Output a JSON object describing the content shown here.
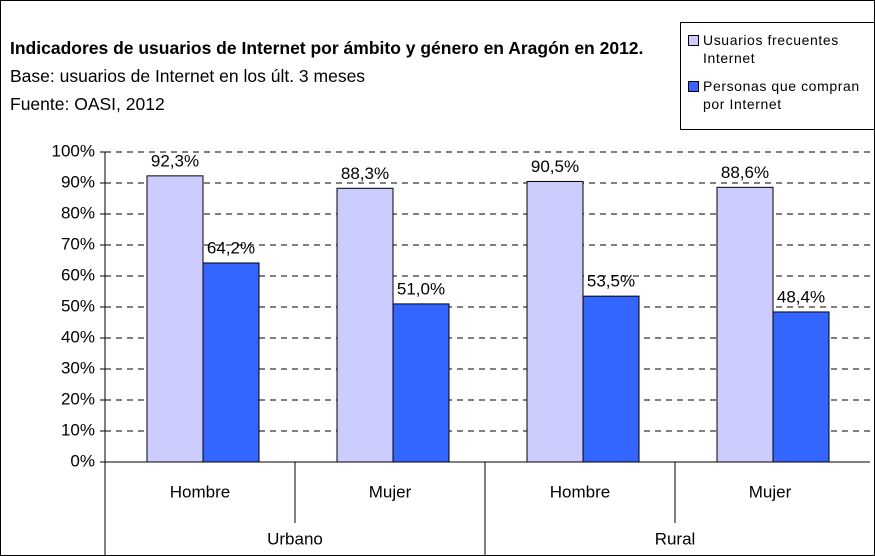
{
  "chart_data": {
    "type": "bar",
    "title": "Indicadores de usuarios de Internet por ámbito y género en Aragón en 2012.",
    "subtitle": "Base: usuarios de Internet en los últ. 3 meses",
    "source": "Fuente: OASI, 2012",
    "categories": [
      "Hombre",
      "Mujer",
      "Hombre",
      "Mujer"
    ],
    "category_groups": [
      "Urbano",
      "Urbano",
      "Rural",
      "Rural"
    ],
    "series": [
      {
        "name": "Usuarios frecuentes Internet",
        "color": "#ccccff",
        "values": [
          92.3,
          88.3,
          90.5,
          88.6
        ],
        "value_labels": [
          "92,3%",
          "88,3%",
          "90,5%",
          "88,6%"
        ]
      },
      {
        "name": "Personas que compran por Internet",
        "color": "#3366ff",
        "values": [
          64.2,
          51.0,
          53.5,
          48.4
        ],
        "value_labels": [
          "64,2%",
          "51,0%",
          "53,5%",
          "48,4%"
        ]
      }
    ],
    "ylim": [
      0,
      100
    ],
    "yticks": [
      {
        "value": 0,
        "label": "0%"
      },
      {
        "value": 10,
        "label": "10%"
      },
      {
        "value": 20,
        "label": "20%"
      },
      {
        "value": 30,
        "label": "30%"
      },
      {
        "value": 40,
        "label": "40%"
      },
      {
        "value": 50,
        "label": "50%"
      },
      {
        "value": 60,
        "label": "60%"
      },
      {
        "value": 70,
        "label": "70%"
      },
      {
        "value": 80,
        "label": "80%"
      },
      {
        "value": 90,
        "label": "90%"
      },
      {
        "value": 100,
        "label": "100%"
      }
    ],
    "grid": true,
    "legend": "top-right"
  }
}
